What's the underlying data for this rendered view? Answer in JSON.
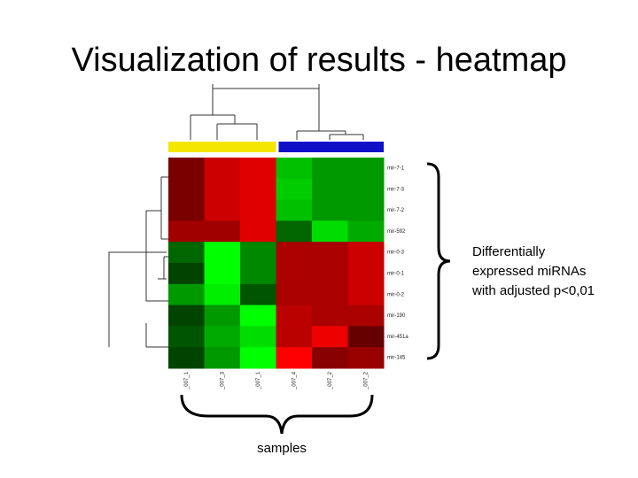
{
  "slide": {
    "title": "Visualization of results - heatmap",
    "annotation": [
      "Differentially",
      "expressed miRNAs",
      "with adjusted p<0,01"
    ],
    "samples_label": "samples"
  },
  "heatmap": {
    "row_labels": [
      "mir-7-1",
      "mir-7-3",
      "mir-7-2",
      "mir-592",
      "mir-0-3",
      "mir-0-1",
      "mir-0-2",
      "mir-190",
      "mir-451a",
      "mir-145"
    ],
    "column_labels": [
      "_007_1",
      "_007_3",
      "_007_1",
      "_007_4",
      "_007_2",
      "_007_2"
    ],
    "group_colors": [
      "#f5e600",
      "#f5e600",
      "#f5e600",
      "#1010c8",
      "#1010c8",
      "#1010c8"
    ],
    "cells": [
      [
        "#7a0000",
        "#cc0000",
        "#e00000",
        "#00c000",
        "#009900",
        "#009900"
      ],
      [
        "#7a0000",
        "#cc0000",
        "#e00000",
        "#00cc00",
        "#009900",
        "#009900"
      ],
      [
        "#7a0000",
        "#cc0000",
        "#e00000",
        "#00c000",
        "#009900",
        "#009900"
      ],
      [
        "#a00000",
        "#a00000",
        "#e00000",
        "#006600",
        "#00dd00",
        "#00aa00"
      ],
      [
        "#006600",
        "#00ff00",
        "#008800",
        "#aa0000",
        "#aa0000",
        "#cc0000"
      ],
      [
        "#004400",
        "#00ff00",
        "#008800",
        "#aa0000",
        "#aa0000",
        "#cc0000"
      ],
      [
        "#009900",
        "#00ee00",
        "#005500",
        "#aa0000",
        "#aa0000",
        "#cc0000"
      ],
      [
        "#004400",
        "#009900",
        "#00ff00",
        "#bb0000",
        "#aa0000",
        "#aa0000"
      ],
      [
        "#005500",
        "#00aa00",
        "#00dd00",
        "#bb0000",
        "#ee0000",
        "#660000"
      ],
      [
        "#004400",
        "#009900",
        "#00ff00",
        "#ff0000",
        "#880000",
        "#990000"
      ]
    ]
  }
}
